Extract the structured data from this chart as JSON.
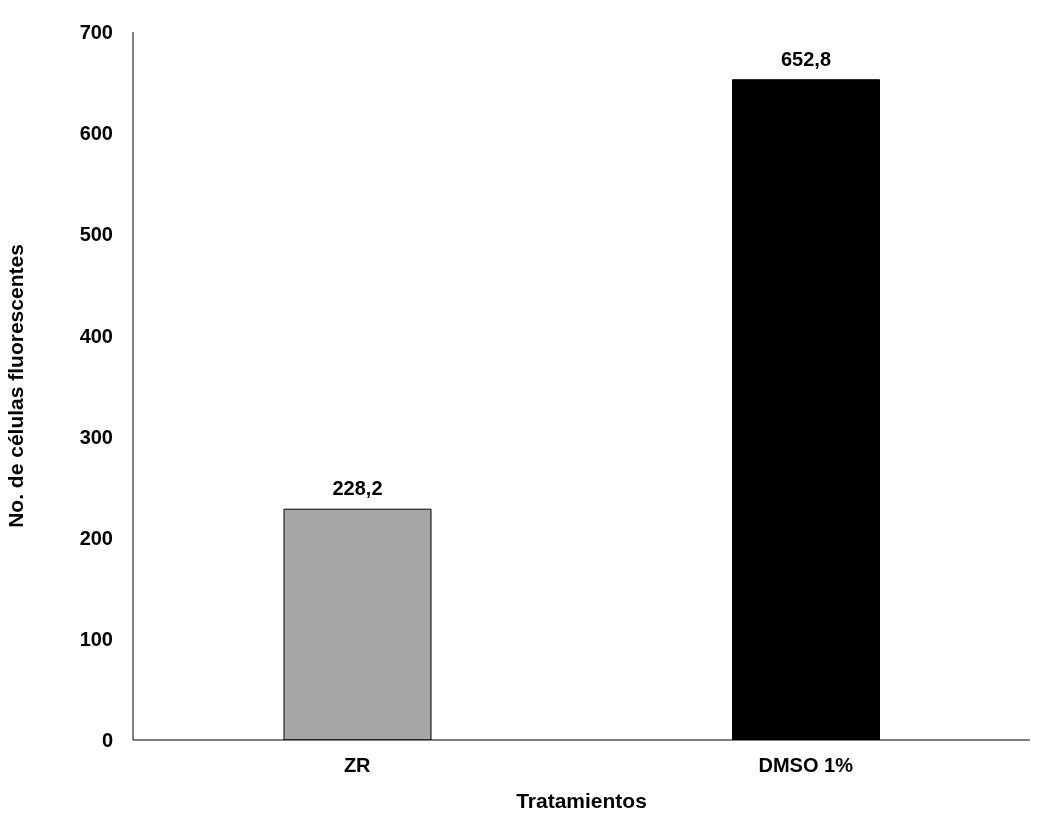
{
  "chart_data": {
    "type": "bar",
    "xlabel": "Tratamientos",
    "ylabel": "No. de células fluorescentes",
    "categories": [
      "ZR",
      "DMSO 1%"
    ],
    "values": [
      228.2,
      652.8
    ],
    "colors": [
      "#a6a6a6",
      "#000000"
    ],
    "value_labels": [
      "228,2",
      "652,8"
    ],
    "ylim": [
      0,
      700
    ],
    "yticks": [
      0,
      100,
      200,
      300,
      400,
      500,
      600,
      700
    ],
    "grid": false,
    "legend": false
  }
}
